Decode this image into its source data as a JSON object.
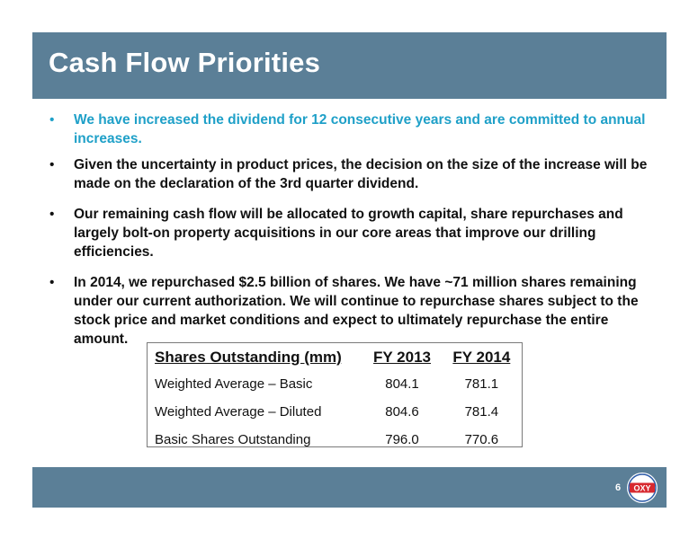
{
  "slide": {
    "title": "Cash Flow Priorities",
    "page_number": "6"
  },
  "bullets": [
    "We have increased the dividend for 12 consecutive years and are committed to annual increases.",
    "Given the uncertainty in product prices, the decision on the size of the increase will be made on the declaration of the 3rd quarter dividend.",
    "Our remaining cash flow will be allocated to growth capital, share repurchases and largely bolt-on property acquisitions in our core areas that improve our drilling efficiencies.",
    "In 2014, we repurchased $2.5 billion of shares.  We have ~71 million shares remaining under our current authorization.  We will continue to repurchase shares subject to the stock price and market conditions and expect to ultimately repurchase the entire amount."
  ],
  "bullet_symbol": "•",
  "table": {
    "headers": [
      "Shares Outstanding (mm)",
      "FY 2013",
      "FY 2014"
    ],
    "rows": [
      [
        "Weighted Average – Basic",
        "804.1",
        "781.1"
      ],
      [
        "Weighted Average – Diluted",
        "804.6",
        "781.4"
      ],
      [
        "Basic Shares Outstanding",
        "796.0",
        "770.6"
      ]
    ]
  },
  "logo": {
    "text": "OXY",
    "icon": "oxy-logo-icon"
  },
  "colors": {
    "bar": "#5b7f97",
    "highlight_bullet": "#1fa0c8",
    "logo_red": "#d7282f",
    "logo_blue": "#2a5aa8"
  }
}
